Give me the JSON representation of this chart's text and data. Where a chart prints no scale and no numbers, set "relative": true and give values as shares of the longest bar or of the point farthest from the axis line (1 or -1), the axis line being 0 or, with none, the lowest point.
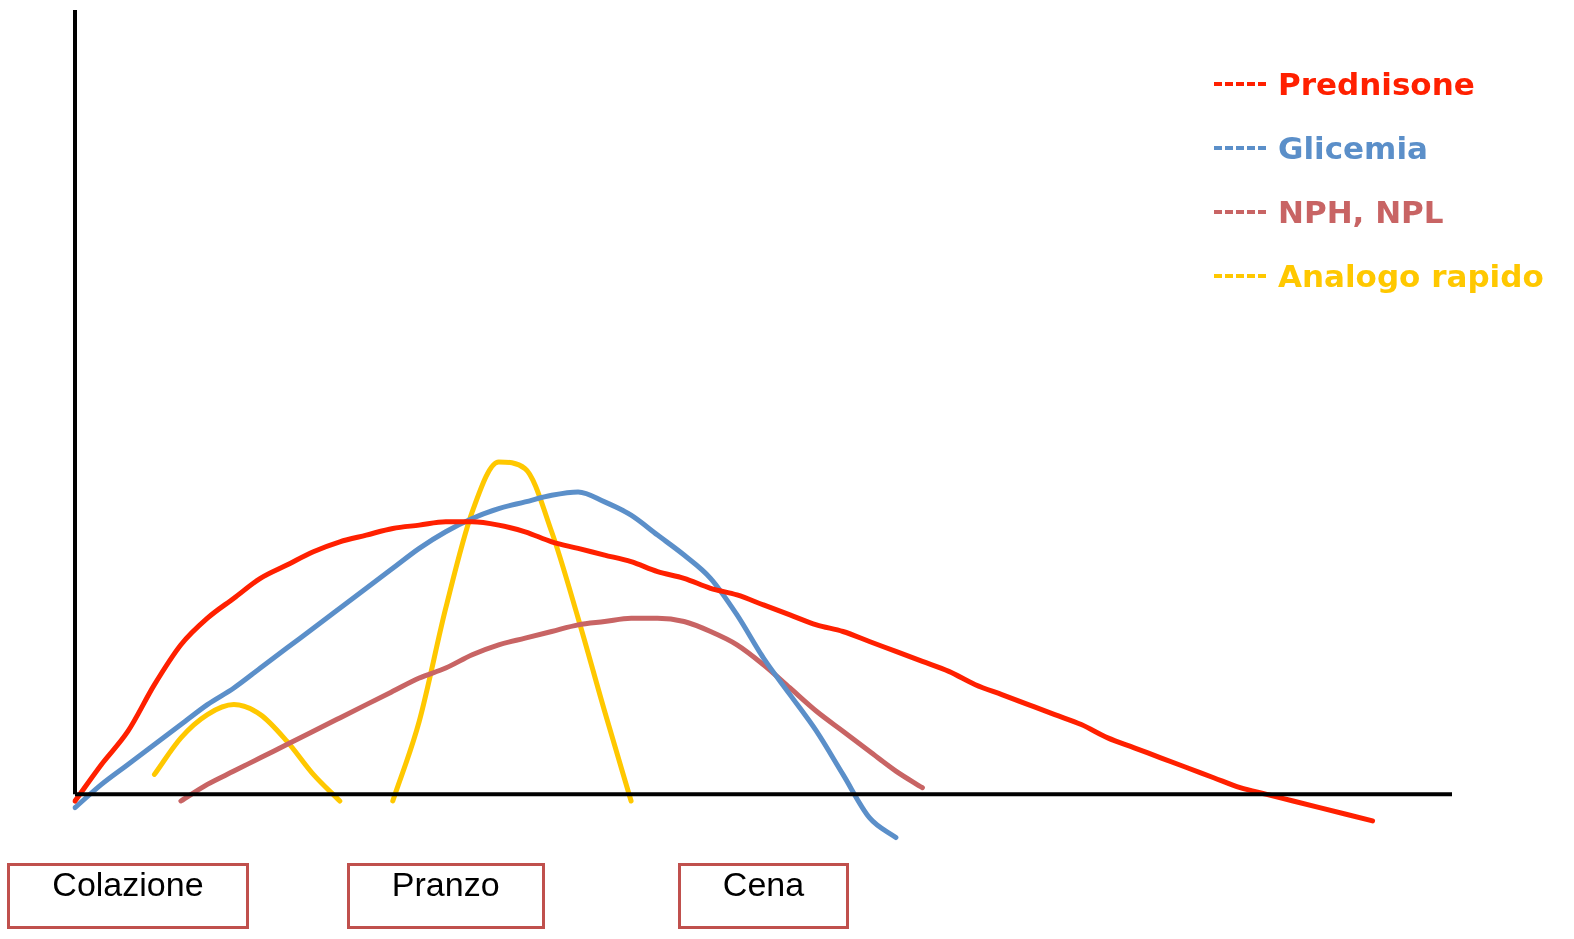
{
  "chart_data": {
    "type": "line",
    "relative": true,
    "legend": "top right",
    "grid": false,
    "marker": "none",
    "line_style": "solid",
    "categories": [
      null,
      null,
      "Colazione",
      null,
      null,
      null,
      null,
      null,
      null,
      null,
      null,
      null,
      null,
      null,
      "Pranzo",
      null,
      null,
      null,
      null,
      null,
      null,
      null,
      null,
      null,
      null,
      null,
      "Cena",
      null,
      null,
      null,
      null,
      null,
      null,
      null,
      null,
      null,
      null,
      null,
      null,
      null,
      null,
      null,
      null,
      null,
      null,
      null,
      null,
      null,
      null,
      null,
      null,
      null,
      null
    ],
    "series": [
      {
        "name": "Prednisone",
        "color": "#ff2000",
        "values": [
          -0.02,
          0.09,
          0.19,
          0.33,
          0.45,
          0.53,
          0.59,
          0.65,
          0.69,
          0.73,
          0.76,
          0.78,
          0.8,
          0.81,
          0.82,
          0.82,
          0.81,
          0.79,
          0.76,
          0.74,
          0.72,
          0.7,
          0.67,
          0.65,
          0.62,
          0.6,
          0.57,
          0.54,
          0.51,
          0.49,
          0.46,
          0.43,
          0.4,
          0.37,
          0.33,
          0.3,
          0.27,
          0.24,
          0.21,
          0.17,
          0.14,
          0.11,
          0.08,
          0.05,
          0.02,
          0,
          -0.02,
          -0.04,
          -0.06,
          -0.08,
          null,
          null,
          null
        ]
      },
      {
        "name": "Glicemia",
        "color": "#5b8fc9",
        "values": [
          -0.04,
          0.03,
          0.09,
          0.15,
          0.21,
          0.27,
          0.32,
          0.38,
          0.44,
          0.5,
          0.56,
          0.62,
          0.68,
          0.74,
          0.79,
          0.83,
          0.86,
          0.88,
          0.9,
          0.91,
          0.88,
          0.84,
          0.78,
          0.72,
          0.65,
          0.54,
          0.41,
          0.3,
          0.19,
          0.06,
          -0.07,
          -0.13,
          null,
          null,
          null,
          null,
          null,
          null,
          null,
          null,
          null,
          null,
          null,
          null,
          null,
          null,
          null,
          null,
          null,
          null,
          null,
          null,
          null
        ]
      },
      {
        "name": "NPH, NPL",
        "color": "#c86464",
        "values": [
          null,
          null,
          null,
          null,
          -0.02,
          0.03,
          0.07,
          0.11,
          0.15,
          0.19,
          0.23,
          0.27,
          0.31,
          0.35,
          0.38,
          0.42,
          0.45,
          0.47,
          0.49,
          0.51,
          0.52,
          0.53,
          0.53,
          0.52,
          0.49,
          0.45,
          0.39,
          0.32,
          0.25,
          0.19,
          0.13,
          0.07,
          0.02,
          null,
          null,
          null,
          null,
          null,
          null,
          null,
          null,
          null,
          null,
          null,
          null,
          null,
          null,
          null,
          null,
          null,
          null,
          null,
          null
        ]
      },
      {
        "name": "Analogo rapido",
        "color": "#ffc800",
        "values": [
          null,
          null,
          null,
          0.06,
          0.17,
          0.24,
          0.27,
          0.24,
          0.16,
          0.06,
          -0.02,
          null,
          -0.02,
          0.22,
          0.56,
          0.85,
          1,
          0.98,
          0.79,
          0.53,
          0.25,
          -0.02,
          null,
          null,
          null,
          null,
          null,
          null,
          null,
          null,
          null,
          null,
          null,
          null,
          null,
          null,
          null,
          null,
          null,
          null,
          null,
          null,
          null,
          null,
          null,
          null,
          null,
          null,
          null,
          null,
          null,
          null,
          null
        ]
      }
    ]
  }
}
